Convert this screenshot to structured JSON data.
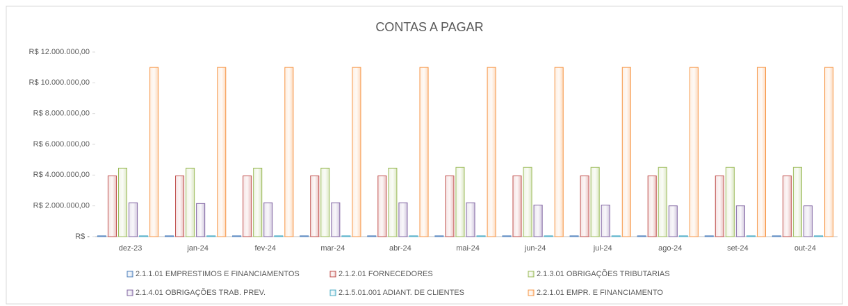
{
  "chart_data": {
    "type": "bar",
    "title": "CONTAS A PAGAR",
    "categories": [
      "dez-23",
      "jan-24",
      "fev-24",
      "mar-24",
      "abr-24",
      "mai-24",
      "jun-24",
      "jul-24",
      "ago-24",
      "set-24",
      "out-24"
    ],
    "series": [
      {
        "name": "2.1.1.01 EMPRESTIMOS E FINANCIAMENTOS",
        "color": "#4f81bd",
        "values": [
          50000,
          50000,
          50000,
          50000,
          50000,
          50000,
          50000,
          50000,
          50000,
          50000,
          50000
        ]
      },
      {
        "name": "2.1.2.01 FORNECEDORES",
        "color": "#c0504d",
        "values": [
          3950000,
          3950000,
          3950000,
          3950000,
          3950000,
          3950000,
          3950000,
          3950000,
          3950000,
          3950000,
          3950000
        ]
      },
      {
        "name": "2.1.3.01 OBRIGAÇÕES TRIBUTARIAS",
        "color": "#9bbb59",
        "values": [
          4450000,
          4450000,
          4450000,
          4450000,
          4450000,
          4500000,
          4500000,
          4500000,
          4500000,
          4500000,
          4500000
        ]
      },
      {
        "name": "2.1.4.01 OBRIGAÇÕES TRAB. PREV.",
        "color": "#8064a2",
        "values": [
          2200000,
          2150000,
          2200000,
          2200000,
          2200000,
          2200000,
          2050000,
          2050000,
          2000000,
          2000000,
          2000000
        ]
      },
      {
        "name": "2.1.5.01.001 ADIANT. DE CLIENTES",
        "color": "#4bacc6",
        "values": [
          50000,
          50000,
          50000,
          50000,
          50000,
          50000,
          50000,
          50000,
          50000,
          50000,
          50000
        ]
      },
      {
        "name": "2.2.1.01 EMPR. E FINANCIAMENTO",
        "color": "#f79646",
        "values": [
          11000000,
          11000000,
          11000000,
          11000000,
          11000000,
          11000000,
          11000000,
          11000000,
          11000000,
          11000000,
          11000000
        ]
      }
    ],
    "ylim": [
      0,
      12000000
    ],
    "yticks": [
      {
        "value": 0,
        "label": "R$ -"
      },
      {
        "value": 2000000,
        "label": "R$ 2.000.000,00"
      },
      {
        "value": 4000000,
        "label": "R$ 4.000.000,00"
      },
      {
        "value": 6000000,
        "label": "R$ 6.000.000,00"
      },
      {
        "value": 8000000,
        "label": "R$ 8.000.000,00"
      },
      {
        "value": 10000000,
        "label": "R$ 10.000.000,00"
      },
      {
        "value": 12000000,
        "label": "R$ 12.000.000,00"
      }
    ],
    "grid": false,
    "legend": "bottom"
  }
}
